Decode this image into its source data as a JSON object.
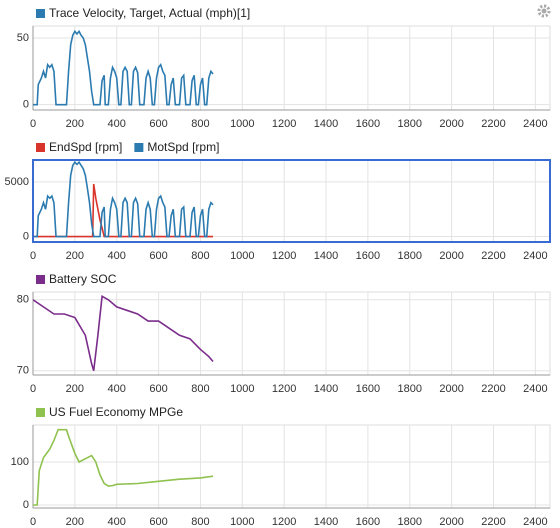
{
  "chart_data": [
    {
      "type": "line",
      "xlim": [
        0,
        2470
      ],
      "xticks": [
        0,
        200,
        400,
        600,
        800,
        1000,
        1200,
        1400,
        1600,
        1800,
        2000,
        2200,
        2400
      ],
      "ylim": [
        -4,
        59
      ],
      "yticks": [
        0,
        50
      ],
      "grid": true,
      "series": [
        {
          "name": "Trace Velocity, Target, Actual (mph)[1]",
          "color": "#2b7bb0",
          "x": [
            0,
            20,
            25,
            40,
            50,
            60,
            70,
            80,
            90,
            100,
            110,
            125,
            160,
            170,
            180,
            190,
            200,
            210,
            220,
            230,
            240,
            250,
            260,
            270,
            280,
            290,
            320,
            330,
            340,
            345,
            360,
            370,
            380,
            390,
            400,
            410,
            420,
            430,
            440,
            450,
            460,
            470,
            480,
            490,
            500,
            510,
            530,
            540,
            550,
            560,
            570,
            580,
            590,
            600,
            610,
            620,
            630,
            640,
            650,
            660,
            670,
            680,
            700,
            710,
            720,
            730,
            750,
            760,
            770,
            780,
            790,
            800,
            810,
            820,
            830,
            840,
            850,
            860
          ],
          "values": [
            0,
            0,
            15,
            20,
            25,
            20,
            30,
            28,
            30,
            25,
            0,
            0,
            0,
            25,
            45,
            52,
            55,
            53,
            55,
            52,
            50,
            45,
            35,
            25,
            10,
            0,
            0,
            18,
            22,
            0,
            0,
            20,
            28,
            25,
            20,
            0,
            0,
            25,
            28,
            25,
            0,
            0,
            25,
            28,
            24,
            0,
            0,
            20,
            25,
            20,
            0,
            0,
            20,
            28,
            30,
            25,
            22,
            0,
            0,
            15,
            20,
            0,
            0,
            20,
            22,
            0,
            0,
            18,
            22,
            0,
            0,
            15,
            20,
            0,
            0,
            20,
            25,
            23
          ]
        }
      ]
    },
    {
      "type": "line",
      "xlim": [
        0,
        2470
      ],
      "xticks": [
        0,
        200,
        400,
        600,
        800,
        1000,
        1200,
        1400,
        1600,
        1800,
        2000,
        2200,
        2400
      ],
      "ylim": [
        -500,
        7000
      ],
      "yticks": [
        0,
        5000
      ],
      "grid": true,
      "series": [
        {
          "name": "EndSpd [rpm]",
          "color": "#d9342b",
          "x": [
            0,
            280,
            285,
            290,
            300,
            310,
            320,
            330,
            340,
            350,
            860
          ],
          "values": [
            0,
            0,
            0,
            4800,
            3500,
            2500,
            1500,
            800,
            0,
            0,
            0
          ]
        },
        {
          "name": "MotSpd [rpm]",
          "color": "#2b7bb0",
          "x": [
            0,
            20,
            25,
            40,
            50,
            60,
            70,
            80,
            90,
            100,
            110,
            125,
            160,
            170,
            180,
            190,
            200,
            210,
            220,
            230,
            240,
            250,
            260,
            270,
            280,
            290,
            320,
            330,
            340,
            345,
            360,
            370,
            380,
            390,
            400,
            410,
            420,
            430,
            440,
            450,
            460,
            470,
            480,
            490,
            500,
            510,
            530,
            540,
            550,
            560,
            570,
            580,
            590,
            600,
            610,
            620,
            630,
            640,
            650,
            660,
            670,
            680,
            700,
            710,
            720,
            730,
            750,
            760,
            770,
            780,
            790,
            800,
            810,
            820,
            830,
            840,
            850,
            860
          ],
          "values": [
            0,
            0,
            1900,
            2500,
            3100,
            2500,
            3700,
            3500,
            3700,
            3100,
            0,
            0,
            0,
            3100,
            5600,
            6500,
            6800,
            6600,
            6800,
            6500,
            6200,
            5600,
            4400,
            3100,
            1200,
            0,
            0,
            2200,
            2700,
            0,
            0,
            2500,
            3500,
            3100,
            2500,
            0,
            0,
            3100,
            3500,
            3100,
            0,
            0,
            3100,
            3500,
            3000,
            0,
            0,
            2500,
            3100,
            2500,
            0,
            0,
            2500,
            3500,
            3700,
            3100,
            2700,
            0,
            0,
            1900,
            2500,
            0,
            0,
            2500,
            2700,
            0,
            0,
            2200,
            2700,
            0,
            0,
            1900,
            2500,
            0,
            0,
            2500,
            3100,
            2900
          ]
        }
      ]
    },
    {
      "type": "line",
      "xlim": [
        0,
        2470
      ],
      "xticks": [
        0,
        200,
        400,
        600,
        800,
        1000,
        1200,
        1400,
        1600,
        1800,
        2000,
        2200,
        2400
      ],
      "ylim": [
        69.4,
        81.1
      ],
      "yticks": [
        70,
        80
      ],
      "grid": true,
      "series": [
        {
          "name": "Battery SOC",
          "color": "#7b2d8b",
          "x": [
            0,
            50,
            100,
            150,
            200,
            250,
            280,
            290,
            310,
            330,
            360,
            400,
            450,
            500,
            550,
            600,
            650,
            700,
            750,
            800,
            840,
            860
          ],
          "values": [
            80,
            79,
            78,
            78,
            77.5,
            75,
            71,
            70,
            75,
            80.5,
            80,
            79,
            78.5,
            78,
            77,
            77,
            76,
            75,
            74.5,
            73,
            72,
            71.3
          ]
        }
      ]
    },
    {
      "type": "line",
      "xlim": [
        0,
        2470
      ],
      "xticks": [
        0,
        200,
        400,
        600,
        800,
        1000,
        1200,
        1400,
        1600,
        1800,
        2000,
        2200,
        2400
      ],
      "ylim": [
        -7,
        186
      ],
      "yticks": [
        0,
        100
      ],
      "grid": true,
      "series": [
        {
          "name": "US Fuel Economy MPGe",
          "color": "#8fc24f",
          "x": [
            0,
            20,
            30,
            50,
            80,
            100,
            120,
            160,
            170,
            200,
            220,
            260,
            280,
            300,
            320,
            340,
            360,
            380,
            400,
            500,
            600,
            700,
            800,
            860
          ],
          "values": [
            0,
            0,
            80,
            110,
            130,
            150,
            175,
            175,
            160,
            120,
            100,
            110,
            115,
            100,
            70,
            50,
            44,
            45,
            48,
            50,
            55,
            60,
            63,
            67
          ]
        }
      ]
    }
  ]
}
